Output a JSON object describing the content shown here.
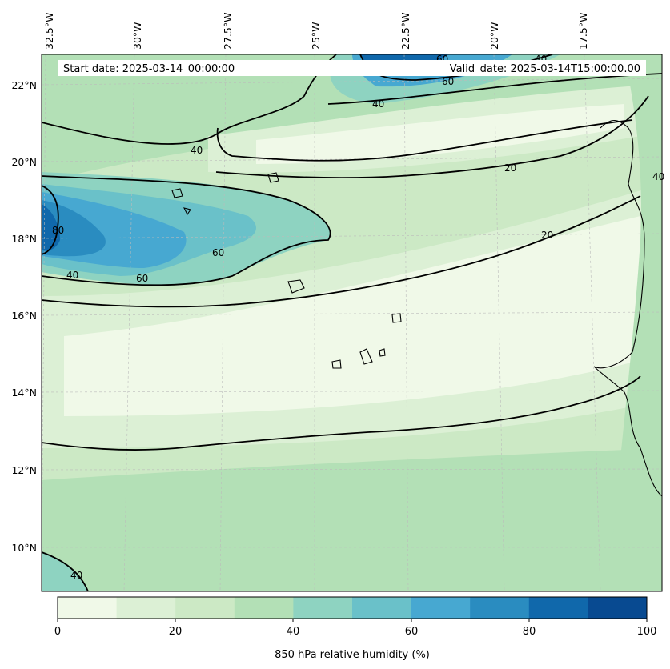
{
  "header": {
    "start_date": "Start date: 2025-03-14_00:00:00",
    "valid_date": "Valid_date: 2025-03-14T15:00:00.00"
  },
  "map": {
    "lon_labels": [
      "32.5°W",
      "30°W",
      "27.5°W",
      "25°W",
      "22.5°W",
      "20°W",
      "17.5°W"
    ],
    "lat_labels": [
      "22°N",
      "20°N",
      "18°N",
      "16°N",
      "14°N",
      "12°N",
      "10°N"
    ],
    "contour_labels": [
      "60",
      "40",
      "60",
      "40",
      "40",
      "20",
      "20",
      "40",
      "80",
      "40",
      "60",
      "60",
      "40"
    ]
  },
  "colorbar": {
    "label": "850 hPa relative humidity (%)",
    "ticks": [
      "0",
      "20",
      "40",
      "60",
      "80",
      "100"
    ],
    "colors": [
      "#f0f9e8",
      "#dcf0d5",
      "#cce9c5",
      "#b3e0b6",
      "#8ed3c1",
      "#6ac1c9",
      "#47a8d1",
      "#2a8cc0",
      "#1068ab",
      "#084a91"
    ]
  },
  "colors": {
    "frame": "#000000",
    "contour": "#000000",
    "coast": "#000000"
  }
}
